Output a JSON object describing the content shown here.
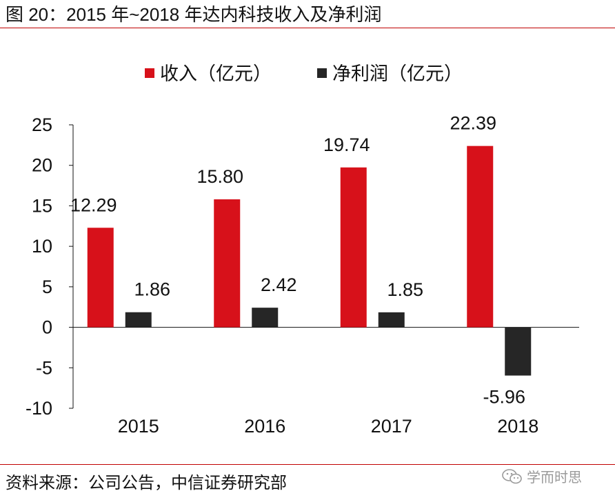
{
  "title": "图 20：2015 年~2018 年达内科技收入及净利润",
  "source": "资料来源：公司公告，中信证券研究部",
  "watermark": "学而时思",
  "colors": {
    "revenue": "#d7111a",
    "net_profit": "#262626",
    "rule": "#c00000"
  },
  "chart_data": {
    "type": "bar",
    "categories": [
      "2015",
      "2016",
      "2017",
      "2018"
    ],
    "series": [
      {
        "name": "收入（亿元）",
        "values": [
          12.29,
          15.8,
          19.74,
          22.39
        ],
        "labels": [
          "12.29",
          "15.80",
          "19.74",
          "22.39"
        ]
      },
      {
        "name": "净利润（亿元）",
        "values": [
          1.86,
          2.42,
          1.85,
          -5.96
        ],
        "labels": [
          "1.86",
          "2.42",
          "1.85",
          "-5.96"
        ]
      }
    ],
    "ylim": [
      -10,
      25
    ],
    "yticks": [
      25,
      20,
      15,
      10,
      5,
      0,
      -5,
      -10
    ],
    "legend_position": "top-center",
    "grid": false
  }
}
